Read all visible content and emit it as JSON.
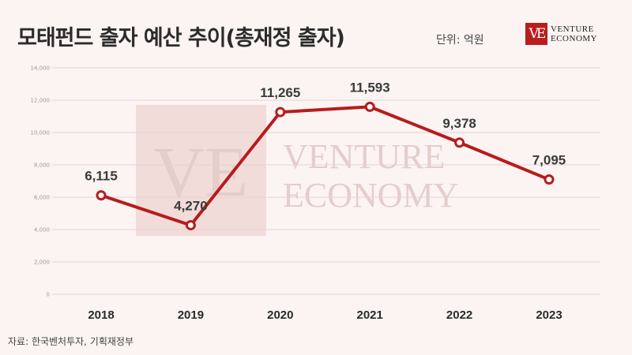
{
  "title": "모태펀드 출자 예산 추이(총재정 출자)",
  "unit": "단위: 억원",
  "source": "자료: 한국벤처투자, 기획재정부",
  "logo": {
    "mark": "VE",
    "line1": "VENTURE",
    "line2": "ECONOMY"
  },
  "watermark": {
    "mark": "VE",
    "line1": "VENTURE",
    "line2": "ECONOMY"
  },
  "colors": {
    "line": "#b71c1c",
    "marker_fill": "#ffffff",
    "background": "#fbf4f3",
    "accent": "#b81e1e"
  },
  "chart_data": {
    "type": "line",
    "categories": [
      "2018",
      "2019",
      "2020",
      "2021",
      "2022",
      "2023"
    ],
    "series": [
      {
        "values": [
          6115,
          4270,
          11265,
          11593,
          9378,
          7095
        ]
      }
    ],
    "data_labels": [
      "6,115",
      "4,270",
      "11,265",
      "11,593",
      "9,378",
      "7,095"
    ],
    "y_ticks": [
      0,
      2000,
      4000,
      6000,
      8000,
      10000,
      12000,
      14000
    ],
    "y_tick_labels": [
      "0",
      "2,000",
      "4,000",
      "6,000",
      "8,000",
      "10,000",
      "12,000",
      "14,000"
    ],
    "ylim": [
      0,
      14000
    ],
    "grid": true,
    "legend": "none",
    "title": "모태펀드 출자 예산 추이(총재정 출자)"
  }
}
